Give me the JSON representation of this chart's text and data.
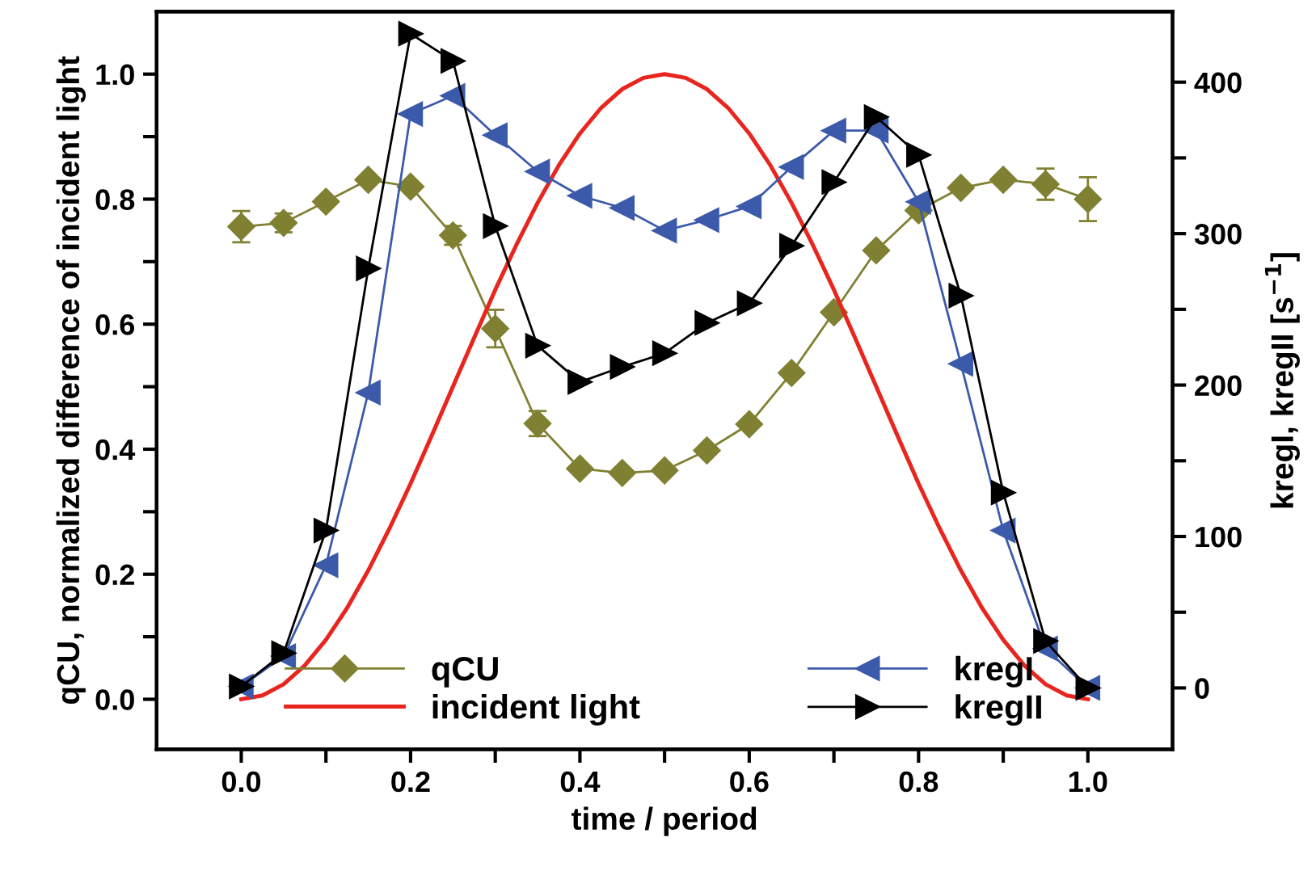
{
  "chart_data": {
    "type": "line",
    "xlabel": "time / period",
    "ylabel": "qCU, normalized difference of incident light",
    "y2label": "kregI, kregII [s$^{−1}$]",
    "xlim": [
      -0.1,
      1.1
    ],
    "xticks": [
      {
        "value": 0,
        "label": "0.0"
      },
      {
        "value": 0.1,
        "label": null
      },
      {
        "value": 0.2,
        "label": "0.2"
      },
      {
        "value": 0.3,
        "label": null
      },
      {
        "value": 0.4,
        "label": "0.4"
      },
      {
        "value": 0.5,
        "label": null
      },
      {
        "value": 0.6,
        "label": "0.6"
      },
      {
        "value": 0.7,
        "label": null
      },
      {
        "value": 0.8,
        "label": "0.8"
      },
      {
        "value": 0.9,
        "label": null
      },
      {
        "value": 1.0,
        "label": "1.0"
      }
    ],
    "ylim": [
      -0.08,
      1.1
    ],
    "yticks": [
      {
        "value": 0,
        "label": "0.0"
      },
      {
        "value": 0.1,
        "label": null
      },
      {
        "value": 0.2,
        "label": "0.2"
      },
      {
        "value": 0.3,
        "label": null
      },
      {
        "value": 0.4,
        "label": "0.4"
      },
      {
        "value": 0.5,
        "label": null
      },
      {
        "value": 0.6,
        "label": "0.6"
      },
      {
        "value": 0.7,
        "label": null
      },
      {
        "value": 0.8,
        "label": "0.8"
      },
      {
        "value": 0.9,
        "label": null
      },
      {
        "value": 1.0,
        "label": "1.0"
      }
    ],
    "y2lim": [
      -40.5,
      446.6
    ],
    "y2ticks": [
      0,
      {
        "value": 50,
        "label": null
      },
      100,
      {
        "value": 150,
        "label": null
      },
      200,
      {
        "value": 250,
        "label": null
      },
      300,
      {
        "value": 350,
        "label": null
      },
      400
    ],
    "legend": "bottom",
    "grid": false,
    "series": [
      {
        "name": "qCU",
        "color": "#808033",
        "marker": "diamond",
        "x": [
          0,
          0.05,
          0.1,
          0.15,
          0.2,
          0.25,
          0.3,
          0.35,
          0.4,
          0.45,
          0.5,
          0.55,
          0.6,
          0.65,
          0.7,
          0.75,
          0.8,
          0.85,
          0.9,
          0.95,
          1.0
        ],
        "values": [
          0.756,
          0.762,
          0.796,
          0.831,
          0.82,
          0.742,
          0.593,
          0.441,
          0.369,
          0.362,
          0.366,
          0.398,
          0.44,
          0.522,
          0.619,
          0.718,
          0.782,
          0.818,
          0.831,
          0.824,
          0.8
        ],
        "errors": [
          0.025,
          0.015,
          null,
          null,
          null,
          0.015,
          0.03,
          0.02,
          null,
          null,
          null,
          null,
          null,
          null,
          null,
          null,
          null,
          null,
          null,
          0.025,
          0.035
        ]
      },
      {
        "name": "incident light",
        "color": "#e8251e",
        "marker": "none",
        "x": [
          0,
          0.025,
          0.05,
          0.075,
          0.1,
          0.125,
          0.15,
          0.175,
          0.2,
          0.225,
          0.25,
          0.275,
          0.3,
          0.325,
          0.35,
          0.375,
          0.4,
          0.425,
          0.45,
          0.475,
          0.5,
          0.525,
          0.55,
          0.575,
          0.6,
          0.625,
          0.65,
          0.675,
          0.7,
          0.725,
          0.75,
          0.775,
          0.8,
          0.825,
          0.85,
          0.875,
          0.9,
          0.925,
          0.95,
          0.975,
          1.0
        ],
        "values": [
          0.0,
          0.006,
          0.024,
          0.054,
          0.095,
          0.146,
          0.206,
          0.273,
          0.345,
          0.422,
          0.5,
          0.578,
          0.655,
          0.727,
          0.794,
          0.854,
          0.905,
          0.946,
          0.976,
          0.994,
          1.0,
          0.994,
          0.976,
          0.946,
          0.905,
          0.854,
          0.794,
          0.727,
          0.655,
          0.578,
          0.5,
          0.422,
          0.345,
          0.273,
          0.206,
          0.146,
          0.095,
          0.054,
          0.024,
          0.006,
          0.0
        ]
      },
      {
        "name": "kregI",
        "axis": "y2",
        "color": "#3c5aaa",
        "marker": "triangle-left",
        "x": [
          0,
          0.05,
          0.1,
          0.15,
          0.2,
          0.25,
          0.3,
          0.35,
          0.4,
          0.45,
          0.5,
          0.55,
          0.6,
          0.65,
          0.7,
          0.75,
          0.8,
          0.85,
          0.9,
          0.95,
          1.0
        ],
        "values": [
          1,
          21,
          81,
          195,
          379,
          391,
          365,
          341,
          325,
          317,
          302,
          309,
          318,
          344,
          368,
          368,
          321,
          214,
          104,
          26,
          0
        ]
      },
      {
        "name": "kregII",
        "axis": "y2",
        "color": "#000000",
        "marker": "triangle-right",
        "x": [
          0,
          0.05,
          0.1,
          0.15,
          0.2,
          0.25,
          0.3,
          0.35,
          0.4,
          0.45,
          0.5,
          0.55,
          0.6,
          0.65,
          0.7,
          0.75,
          0.8,
          0.85,
          0.9,
          0.95,
          1.0
        ],
        "values": [
          1,
          23,
          104,
          277,
          432,
          414,
          305,
          226,
          202,
          212,
          221,
          241,
          254,
          292,
          334,
          377,
          352,
          259,
          129,
          31,
          0
        ]
      }
    ]
  }
}
